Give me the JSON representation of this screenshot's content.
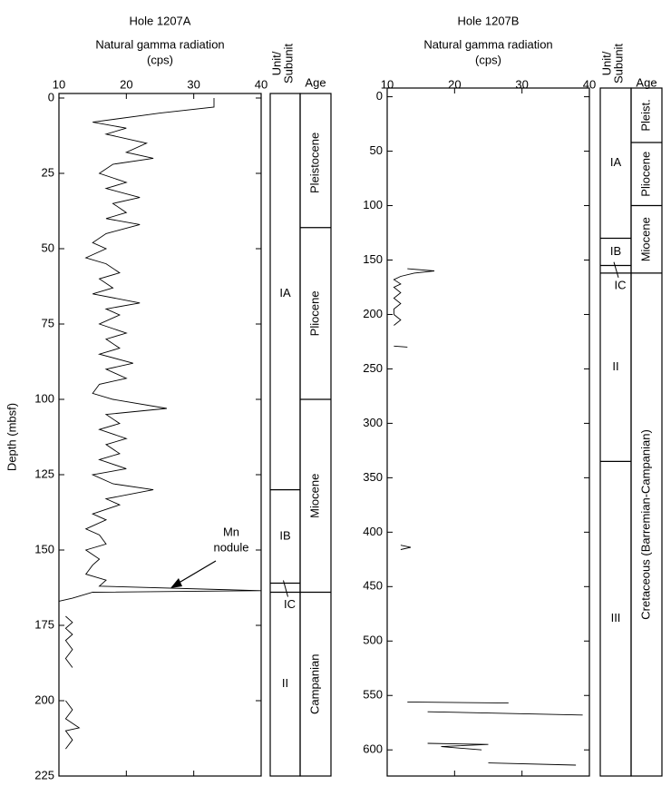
{
  "chart_data": [
    {
      "type": "line",
      "title": "Hole 1207A",
      "xlabel": "Natural gamma radiation",
      "xlabel_unit": "(cps)",
      "ylabel": "Depth (mbsf)",
      "xlim": [
        10,
        40
      ],
      "xticks": [
        10,
        20,
        30,
        40
      ],
      "ylim": [
        225,
        0
      ],
      "yticks": [
        0,
        25,
        50,
        75,
        100,
        125,
        150,
        175,
        200,
        225
      ],
      "color": "#000000",
      "depth": [
        0,
        3,
        5,
        8,
        10,
        12,
        15,
        18,
        20,
        22,
        25,
        28,
        30,
        33,
        35,
        38,
        40,
        42,
        45,
        48,
        50,
        53,
        55,
        58,
        60,
        63,
        65,
        68,
        70,
        72,
        75,
        78,
        80,
        83,
        85,
        88,
        90,
        93,
        95,
        98,
        100,
        103,
        105,
        108,
        110,
        113,
        115,
        118,
        120,
        123,
        125,
        128,
        130,
        133,
        135,
        138,
        140,
        143,
        145,
        148,
        150,
        153,
        155,
        158,
        160,
        162,
        163.5,
        164,
        166,
        167,
        null,
        172,
        174,
        176,
        178,
        180,
        183,
        186,
        189,
        null,
        200,
        203,
        206,
        209,
        210,
        213,
        216
      ],
      "values": [
        33,
        33,
        25,
        15,
        20,
        17,
        23,
        20,
        24,
        18,
        16,
        20,
        17,
        22,
        18,
        20,
        17,
        22,
        17,
        15,
        17,
        14,
        17,
        19,
        16,
        18,
        15,
        22,
        17,
        19,
        16,
        20,
        17,
        19,
        16,
        21,
        17,
        20,
        16,
        15,
        18,
        26,
        17,
        19,
        16,
        20,
        17,
        19,
        16,
        20,
        15,
        18,
        24,
        17,
        19,
        15,
        17,
        14,
        16,
        17,
        14,
        16,
        15,
        14,
        17,
        16,
        40,
        15,
        12,
        10,
        null,
        11,
        12,
        11,
        12,
        11,
        12,
        11,
        12,
        null,
        11,
        12,
        11,
        13,
        11,
        12,
        11
      ],
      "annotation": [
        "Mn",
        "nodule"
      ],
      "unit_header": [
        "Unit/",
        "Subunit"
      ],
      "age_header": "Age",
      "units": [
        {
          "label": "IA",
          "top": 0,
          "bottom": 130
        },
        {
          "label": "IB",
          "top": 130,
          "bottom": 161
        },
        {
          "label": "IC",
          "top": 161,
          "bottom": 164
        },
        {
          "label": "II",
          "top": 164,
          "bottom": 225
        }
      ],
      "ages": [
        {
          "label": "Pleistocene",
          "top": 0,
          "bottom": 43
        },
        {
          "label": "Pliocene",
          "top": 43,
          "bottom": 100
        },
        {
          "label": "Miocene",
          "top": 100,
          "bottom": 164
        },
        {
          "label": "Campanian",
          "top": 164,
          "bottom": 225
        }
      ]
    },
    {
      "type": "line",
      "title": "Hole 1207B",
      "xlabel": "Natural gamma radiation",
      "xlabel_unit": "(cps)",
      "xlim": [
        10,
        40
      ],
      "xticks": [
        10,
        20,
        30,
        40
      ],
      "ylim": [
        624,
        -8
      ],
      "yticks": [
        0,
        50,
        100,
        150,
        200,
        250,
        300,
        350,
        400,
        450,
        500,
        550,
        600
      ],
      "color": "#000000",
      "depth": [
        158,
        160,
        162,
        165,
        168,
        172,
        175,
        180,
        185,
        190,
        195,
        200,
        205,
        210,
        null,
        229,
        230,
        null,
        412,
        414,
        416,
        null,
        556,
        557,
        null,
        565,
        568,
        null,
        594,
        595,
        597,
        600,
        null,
        612,
        614
      ],
      "values": [
        13,
        17,
        14,
        12,
        11,
        12,
        11,
        12,
        11,
        12,
        11,
        11,
        12,
        11,
        null,
        11,
        13,
        null,
        12,
        13.5,
        12,
        null,
        13,
        28,
        null,
        16,
        39,
        null,
        16,
        25,
        18,
        24,
        null,
        25,
        38
      ],
      "unit_header": [
        "Unit/",
        "Subunit"
      ],
      "age_header": "Age",
      "units": [
        {
          "label": "IA",
          "top": -8,
          "bottom": 130
        },
        {
          "label": "IB",
          "top": 130,
          "bottom": 155
        },
        {
          "label": "IC",
          "top": 155,
          "bottom": 162
        },
        {
          "label": "II",
          "top": 162,
          "bottom": 335
        },
        {
          "label": "III",
          "top": 335,
          "bottom": 624
        }
      ],
      "ages": [
        {
          "label": "Pleist.",
          "top": -8,
          "bottom": 42
        },
        {
          "label": "Pliocene",
          "top": 42,
          "bottom": 100
        },
        {
          "label": "Miocene",
          "top": 100,
          "bottom": 162
        },
        {
          "label": "Cretaceous (Barremian-Campanian)",
          "top": 162,
          "bottom": 624
        }
      ]
    }
  ]
}
